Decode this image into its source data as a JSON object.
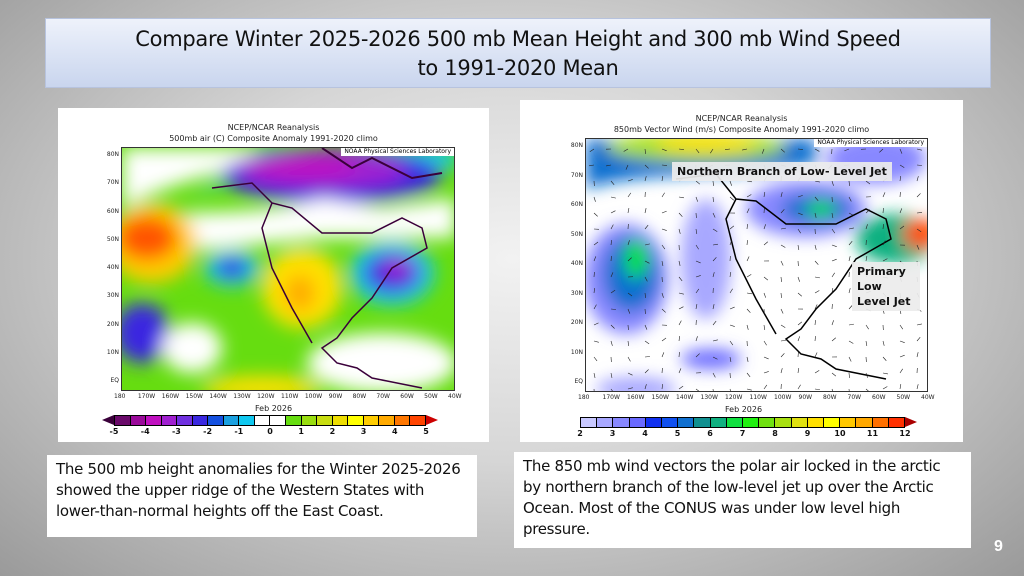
{
  "slide": {
    "title_line1": "Compare Winter 2025-2026   500 mb Mean Height and 300 mb Wind Speed",
    "title_line2": "to 1991-2020 Mean",
    "page_number": "9"
  },
  "left_map": {
    "title1": "NCEP/NCAR Reanalysis",
    "title2": "500mb air (C) Composite Anomaly 1991-2020 climo",
    "credit": "NOAA Physical Sciences Laboratory",
    "period": "Feb 2026",
    "lat_ticks": [
      "80N",
      "70N",
      "60N",
      "50N",
      "40N",
      "30N",
      "20N",
      "10N",
      "EQ"
    ],
    "lon_ticks": [
      "180",
      "170W",
      "160W",
      "150W",
      "140W",
      "130W",
      "120W",
      "110W",
      "100W",
      "90W",
      "80W",
      "70W",
      "60W",
      "50W",
      "40W"
    ],
    "colorbar_labels": [
      "-5",
      "-4",
      "-3",
      "-2",
      "-1",
      "0",
      "1",
      "2",
      "3",
      "4",
      "5"
    ],
    "colorbar_colors": [
      "#6a0a6a",
      "#9a0a9a",
      "#c010c0",
      "#a020d0",
      "#7030e0",
      "#3a28e0",
      "#1450e0",
      "#1aa0e0",
      "#10c8f0",
      "#ffffff",
      "#ffffff",
      "#66dd10",
      "#99dd10",
      "#c8dd10",
      "#eedd00",
      "#ffff00",
      "#ffcc00",
      "#ffaa00",
      "#ff7700",
      "#ff4400"
    ]
  },
  "right_map": {
    "title1": "NCEP/NCAR Reanalysis",
    "title2": "850mb Vector Wind (m/s) Composite Anomaly 1991-2020 climo",
    "credit": "NOAA Physical Sciences Laboratory",
    "period": "Feb 2026",
    "lat_ticks": [
      "80N",
      "70N",
      "60N",
      "50N",
      "40N",
      "30N",
      "20N",
      "10N",
      "EQ"
    ],
    "lon_ticks": [
      "180",
      "170W",
      "160W",
      "150W",
      "140W",
      "130W",
      "120W",
      "110W",
      "100W",
      "90W",
      "80W",
      "70W",
      "60W",
      "50W",
      "40W"
    ],
    "colorbar_labels": [
      "2",
      "3",
      "4",
      "5",
      "6",
      "7",
      "8",
      "9",
      "10",
      "11",
      "12"
    ],
    "colorbar_colors": [
      "#c8c8ff",
      "#a8a8ff",
      "#8888ff",
      "#6a6aff",
      "#1030f0",
      "#1050f0",
      "#1070d0",
      "#109090",
      "#10b080",
      "#10e040",
      "#20f010",
      "#70e010",
      "#a8e010",
      "#e0e010",
      "#ffe000",
      "#ffff00",
      "#ffc800",
      "#ffa800",
      "#ff7000",
      "#ff3000"
    ],
    "annotations": {
      "northern_jet": "Northern Branch of Low- Level Jet",
      "primary_jet": "Primary Low Level Jet"
    }
  },
  "captions": {
    "left": "The 500 mb  height anomalies for the Winter 2025-2026 showed the upper ridge of the Western States with lower-than-normal heights off the East Coast.",
    "right": "The 850 mb wind vectors the polar air locked in the arctic by northern branch of the low-level jet up over the Arctic Ocean. Most of the CONUS was under low level high pressure."
  }
}
